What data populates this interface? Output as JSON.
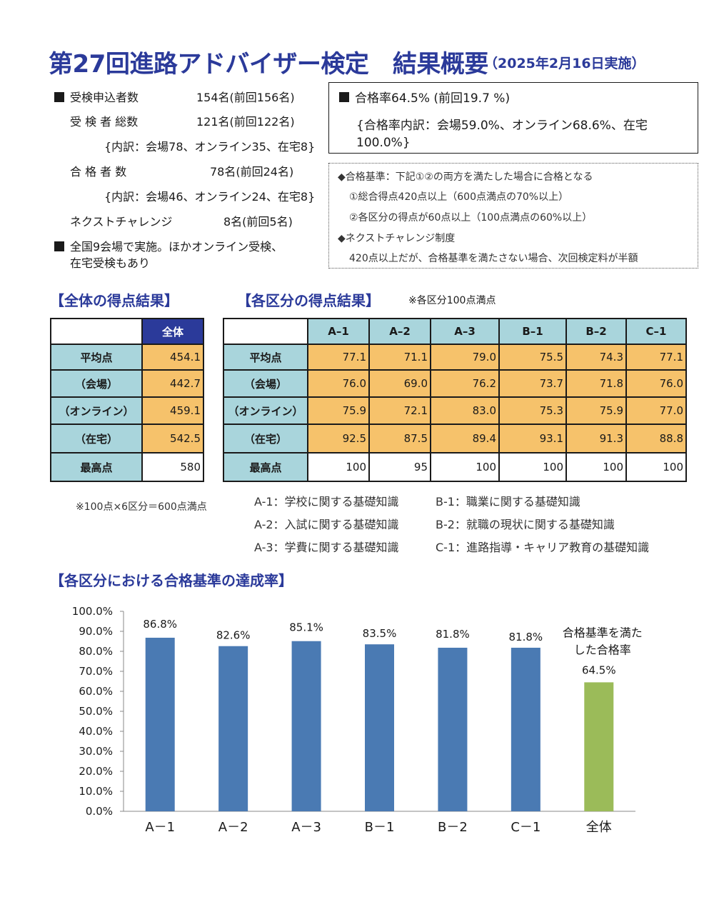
{
  "title": {
    "main": "第27回進路アドバイザー検定　結果概要",
    "date": "（2025年2月16日実施）"
  },
  "info": {
    "applicants_label": "受検申込者数",
    "applicants_value": "154名(前回156名)",
    "examinees_label": "受 検 者 総数",
    "examinees_value": "121名(前回122名)",
    "examinees_breakdown": "{内訳：会場78、オンライン35、在宅8}",
    "passers_label": "合 格 者 数",
    "passers_value": "78名(前回24名)",
    "passers_breakdown": "{内訳：会場46、オンライン24、在宅8}",
    "next_label": "ネクストチャレンジ",
    "next_value": "8名(前回5名)",
    "venue_note_1": "全国9会場で実施。ほかオンライン受検、",
    "venue_note_2": "在宅受検もあり"
  },
  "pass_box": {
    "rate": "合格率64.5% (前回19.7 %)",
    "breakdown_1": "{合格率内訳：会場59.0%、オンライン68.6%、在宅",
    "breakdown_2": "100.0%}"
  },
  "criteria": {
    "line1": "◆合格基準：下記①②の両方を満たした場合に合格となる",
    "line2": "①総合得点420点以上（600点満点の70%以上）",
    "line3": "②各区分の得点が60点以上（100点満点の60%以上）",
    "line4": "◆ネクストチャレンジ制度",
    "line5": "420点以上だが、合格基準を満たさない場合、次回検定料が半額"
  },
  "overall_heading": "【全体の得点結果】",
  "section_heading": "【各区分の得点結果】",
  "section_note": "※各区分100点満点",
  "overall_table": {
    "header": "全体",
    "rows": [
      {
        "label": "平均点",
        "value": "454.1"
      },
      {
        "label": "（会場）",
        "value": "442.7"
      },
      {
        "label": "（オンライン）",
        "value": "459.1"
      },
      {
        "label": "（在宅）",
        "value": "542.5"
      },
      {
        "label": "最高点",
        "value": "580"
      }
    ],
    "note": "※100点×6区分＝600点満点"
  },
  "section_table": {
    "headers": [
      "A–1",
      "A–2",
      "A–3",
      "B–1",
      "B–2",
      "C–1"
    ],
    "rows": [
      {
        "label": "平均点",
        "values": [
          "77.1",
          "71.1",
          "79.0",
          "75.5",
          "74.3",
          "77.1"
        ]
      },
      {
        "label": "（会場）",
        "values": [
          "76.0",
          "69.0",
          "76.2",
          "73.7",
          "71.8",
          "76.0"
        ]
      },
      {
        "label": "（オンライン）",
        "values": [
          "75.9",
          "72.1",
          "83.0",
          "75.3",
          "75.9",
          "77.0"
        ]
      },
      {
        "label": "（在宅）",
        "values": [
          "92.5",
          "87.5",
          "89.4",
          "93.1",
          "91.3",
          "88.8"
        ]
      },
      {
        "label": "最高点",
        "values": [
          "100",
          "95",
          "100",
          "100",
          "100",
          "100"
        ]
      }
    ]
  },
  "legend": {
    "a1": "A-1：学校に関する基礎知識",
    "b1": "B-1：職業に関する基礎知識",
    "a2": "A-2：入試に関する基礎知識",
    "b2": "B-2：就職の現状に関する基礎知識",
    "a3": "A-3：学費に関する基礎知識",
    "c1": "C-1：進路指導・キャリア教育の基礎知識"
  },
  "chart_heading": "【各区分における合格基準の達成率】",
  "chart_data": {
    "type": "bar",
    "categories": [
      "A－1",
      "A－2",
      "A－3",
      "B－1",
      "B－2",
      "C－1",
      "全体"
    ],
    "values": [
      86.8,
      82.6,
      85.1,
      83.5,
      81.8,
      81.8,
      64.5
    ],
    "data_labels": [
      "86.8%",
      "82.6%",
      "85.1%",
      "83.5%",
      "81.8%",
      "81.8%",
      "64.5%"
    ],
    "overall_annotation": [
      "合格基準を満た",
      "した合格率"
    ],
    "ylim": [
      0,
      100
    ],
    "yticks": [
      "0.0%",
      "10.0%",
      "20.0%",
      "30.0%",
      "40.0%",
      "50.0%",
      "60.0%",
      "70.0%",
      "80.0%",
      "90.0%",
      "100.0%"
    ],
    "colors": {
      "bar": "#4a7ab3",
      "overall": "#9bbb59"
    },
    "grid": false
  }
}
